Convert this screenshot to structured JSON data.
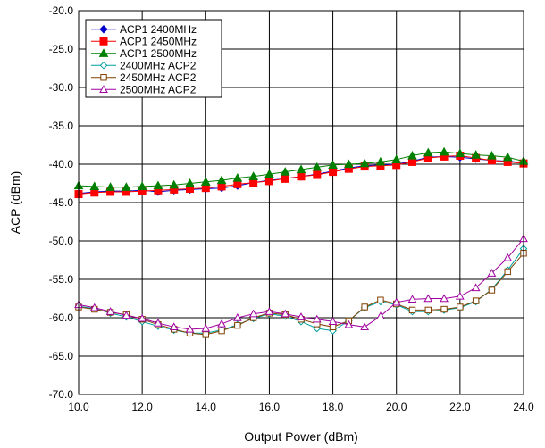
{
  "chart_data": {
    "type": "line",
    "title": "",
    "xlabel": "Output Power (dBm)",
    "ylabel": "ACP (dBm)",
    "xlim": [
      10.0,
      24.0
    ],
    "ylim": [
      -70.0,
      -20.0
    ],
    "x_ticks": [
      "10.0",
      "12.0",
      "14.0",
      "16.0",
      "18.0",
      "20.0",
      "22.0",
      "24.0"
    ],
    "y_ticks": [
      "-20.0",
      "-25.0",
      "-30.0",
      "-35.0",
      "-40.0",
      "-45.0",
      "-50.0",
      "-55.0",
      "-60.0",
      "-65.0",
      "-70.0"
    ],
    "grid": true,
    "legend_position": "top-left",
    "series": [
      {
        "name": "ACP1 2400MHz",
        "color": "#0000cc",
        "marker": "diamond-filled",
        "x": [
          10.0,
          10.5,
          11.0,
          11.5,
          12.0,
          12.5,
          13.0,
          13.5,
          14.0,
          14.5,
          15.0,
          15.5,
          16.0,
          16.5,
          17.0,
          17.5,
          18.0,
          18.5,
          19.0,
          19.5,
          20.0,
          20.5,
          21.0,
          21.5,
          22.0,
          22.5,
          23.0,
          23.5,
          24.0
        ],
        "y": [
          -43.8,
          -43.6,
          -43.5,
          -43.5,
          -43.4,
          -43.6,
          -43.4,
          -43.3,
          -43.2,
          -43.1,
          -42.8,
          -42.4,
          -42.1,
          -41.9,
          -41.6,
          -41.3,
          -40.9,
          -40.5,
          -40.2,
          -40.1,
          -40.0,
          -39.6,
          -39.1,
          -39.0,
          -39.1,
          -39.3,
          -39.5,
          -39.6,
          -39.8
        ]
      },
      {
        "name": "ACP1 2450MHz",
        "color": "#ff0000",
        "marker": "square-filled",
        "x": [
          10.0,
          10.5,
          11.0,
          11.5,
          12.0,
          12.5,
          13.0,
          13.5,
          14.0,
          14.5,
          15.0,
          15.5,
          16.0,
          16.5,
          17.0,
          17.5,
          18.0,
          18.5,
          19.0,
          19.5,
          20.0,
          20.5,
          21.0,
          21.5,
          22.0,
          22.5,
          23.0,
          23.5,
          24.0
        ],
        "y": [
          -43.9,
          -43.7,
          -43.6,
          -43.6,
          -43.5,
          -43.4,
          -43.3,
          -43.2,
          -43.1,
          -42.9,
          -42.6,
          -42.4,
          -42.2,
          -41.9,
          -41.6,
          -41.4,
          -41.0,
          -40.6,
          -40.3,
          -40.2,
          -40.1,
          -39.7,
          -39.2,
          -39.0,
          -38.9,
          -39.2,
          -39.5,
          -39.7,
          -39.9
        ]
      },
      {
        "name": "ACP1 2500MHz",
        "color": "#008000",
        "marker": "triangle-filled",
        "x": [
          10.0,
          10.5,
          11.0,
          11.5,
          12.0,
          12.5,
          13.0,
          13.5,
          14.0,
          14.5,
          15.0,
          15.5,
          16.0,
          16.5,
          17.0,
          17.5,
          18.0,
          18.5,
          19.0,
          19.5,
          20.0,
          20.5,
          21.0,
          21.5,
          22.0,
          22.5,
          23.0,
          23.5,
          24.0
        ],
        "y": [
          -42.8,
          -42.9,
          -43.0,
          -43.0,
          -42.9,
          -42.8,
          -42.7,
          -42.5,
          -42.3,
          -42.1,
          -41.8,
          -41.6,
          -41.3,
          -41.0,
          -40.7,
          -40.4,
          -40.1,
          -40.0,
          -39.9,
          -39.7,
          -39.4,
          -38.9,
          -38.5,
          -38.4,
          -38.6,
          -38.8,
          -38.9,
          -39.1,
          -39.6
        ]
      },
      {
        "name": "2400MHz ACP2",
        "color": "#00a0a0",
        "marker": "diamond-open",
        "x": [
          10.0,
          10.5,
          11.0,
          11.5,
          12.0,
          12.5,
          13.0,
          13.5,
          14.0,
          14.5,
          15.0,
          15.5,
          16.0,
          16.5,
          17.0,
          17.5,
          18.0,
          18.5,
          19.0,
          19.5,
          20.0,
          20.5,
          21.0,
          21.5,
          22.0,
          22.5,
          23.0,
          23.5,
          24.0
        ],
        "y": [
          -58.5,
          -58.8,
          -59.4,
          -59.9,
          -60.5,
          -61.1,
          -61.6,
          -62.0,
          -62.0,
          -61.6,
          -60.9,
          -60.1,
          -59.5,
          -59.8,
          -60.5,
          -61.4,
          -61.7,
          -60.4,
          -58.7,
          -57.9,
          -58.3,
          -59.2,
          -59.2,
          -59.0,
          -58.7,
          -57.9,
          -56.3,
          -53.8,
          -51.0
        ]
      },
      {
        "name": "2450MHz ACP2",
        "color": "#804000",
        "marker": "square-open",
        "x": [
          10.0,
          10.5,
          11.0,
          11.5,
          12.0,
          12.5,
          13.0,
          13.5,
          14.0,
          14.5,
          15.0,
          15.5,
          16.0,
          16.5,
          17.0,
          17.5,
          18.0,
          18.5,
          19.0,
          19.5,
          20.0,
          20.5,
          21.0,
          21.5,
          22.0,
          22.5,
          23.0,
          23.5,
          24.0
        ],
        "y": [
          -58.6,
          -58.9,
          -59.3,
          -59.6,
          -60.2,
          -60.9,
          -61.5,
          -62.0,
          -62.2,
          -61.7,
          -61.0,
          -60.0,
          -59.4,
          -59.6,
          -60.2,
          -60.8,
          -61.2,
          -60.4,
          -58.6,
          -57.7,
          -58.2,
          -59.0,
          -59.0,
          -58.9,
          -58.6,
          -57.8,
          -56.4,
          -54.0,
          -51.6
        ]
      },
      {
        "name": "2500MHz ACP2",
        "color": "#a000a0",
        "marker": "triangle-open",
        "x": [
          10.0,
          10.5,
          11.0,
          11.5,
          12.0,
          12.5,
          13.0,
          13.5,
          14.0,
          14.5,
          15.0,
          15.5,
          16.0,
          16.5,
          17.0,
          17.5,
          18.0,
          18.5,
          19.0,
          19.5,
          20.0,
          20.5,
          21.0,
          21.5,
          22.0,
          22.5,
          23.0,
          23.5,
          24.0
        ],
        "y": [
          -58.3,
          -58.7,
          -59.2,
          -59.7,
          -60.1,
          -60.7,
          -61.2,
          -61.5,
          -61.4,
          -60.8,
          -60.0,
          -59.5,
          -59.2,
          -59.5,
          -59.9,
          -60.2,
          -60.5,
          -60.9,
          -61.2,
          -59.8,
          -58.0,
          -57.6,
          -57.5,
          -57.5,
          -57.2,
          -56.1,
          -54.2,
          -52.2,
          -49.7
        ]
      }
    ]
  }
}
